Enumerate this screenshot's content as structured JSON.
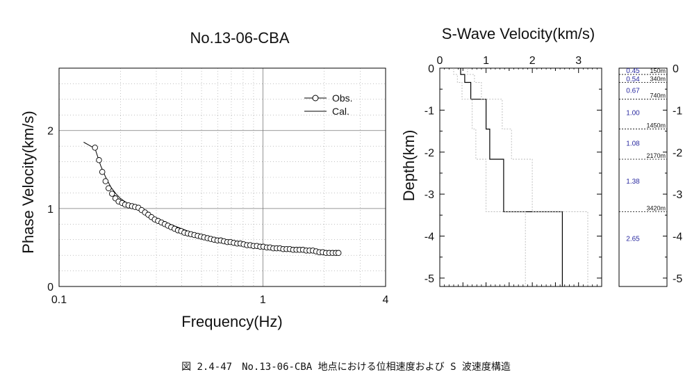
{
  "chart_data": [
    {
      "type": "line",
      "title": "No.13-06-CBA",
      "xlabel": "Frequency(Hz)",
      "ylabel": "Phase Velocity(km/s)",
      "xscale": "log",
      "xlim": [
        0.1,
        4
      ],
      "ylim": [
        0,
        2.8
      ],
      "x_ticks": [
        "0.1",
        "1",
        "4"
      ],
      "y_ticks": [
        "0",
        "1",
        "2"
      ],
      "grid": true,
      "legend": "top-right",
      "series": [
        {
          "name": "Obs.",
          "style": "markers",
          "x": [
            0.15,
            0.157,
            0.163,
            0.169,
            0.175,
            0.182,
            0.189,
            0.196,
            0.204,
            0.211,
            0.219,
            0.228,
            0.236,
            0.245,
            0.254,
            0.264,
            0.274,
            0.284,
            0.295,
            0.306,
            0.318,
            0.33,
            0.342,
            0.355,
            0.369,
            0.383,
            0.397,
            0.412,
            0.428,
            0.444,
            0.461,
            0.479,
            0.497,
            0.515,
            0.535,
            0.555,
            0.576,
            0.598,
            0.621,
            0.644,
            0.669,
            0.694,
            0.72,
            0.748,
            0.776,
            0.805,
            0.836,
            0.867,
            0.9,
            0.934,
            0.97,
            1.006,
            1.045,
            1.084,
            1.125,
            1.168,
            1.212,
            1.258,
            1.306,
            1.355,
            1.407,
            1.46,
            1.515,
            1.573,
            1.632,
            1.694,
            1.758,
            1.825,
            1.894,
            1.966,
            2.04,
            2.117,
            2.198,
            2.281,
            2.35
          ],
          "y": [
            1.78,
            1.62,
            1.47,
            1.35,
            1.26,
            1.19,
            1.13,
            1.09,
            1.07,
            1.05,
            1.04,
            1.03,
            1.02,
            1.01,
            0.98,
            0.95,
            0.92,
            0.89,
            0.86,
            0.84,
            0.82,
            0.8,
            0.78,
            0.76,
            0.74,
            0.72,
            0.71,
            0.69,
            0.68,
            0.67,
            0.66,
            0.65,
            0.64,
            0.63,
            0.62,
            0.61,
            0.6,
            0.59,
            0.59,
            0.58,
            0.57,
            0.57,
            0.56,
            0.55,
            0.55,
            0.54,
            0.53,
            0.53,
            0.52,
            0.52,
            0.51,
            0.51,
            0.5,
            0.5,
            0.49,
            0.49,
            0.49,
            0.48,
            0.48,
            0.48,
            0.47,
            0.47,
            0.47,
            0.47,
            0.46,
            0.46,
            0.46,
            0.45,
            0.44,
            0.44,
            0.43,
            0.43,
            0.43,
            0.43,
            0.43
          ]
        },
        {
          "name": "Cal.",
          "style": "line",
          "x": [
            0.132,
            0.15,
            0.16,
            0.17,
            0.18,
            0.19,
            0.2,
            0.21,
            0.23,
            0.25,
            0.27,
            0.3,
            0.35,
            0.4,
            0.45,
            0.5,
            0.6,
            0.7,
            0.8,
            0.9,
            1.0,
            1.2,
            1.5,
            1.8,
            2.0,
            2.2,
            2.4
          ],
          "y": [
            1.85,
            1.77,
            1.55,
            1.39,
            1.27,
            1.19,
            1.13,
            1.09,
            1.02,
            0.97,
            0.93,
            0.88,
            0.8,
            0.74,
            0.69,
            0.65,
            0.6,
            0.57,
            0.55,
            0.53,
            0.51,
            0.49,
            0.47,
            0.46,
            0.45,
            0.44,
            0.43
          ]
        }
      ]
    },
    {
      "type": "line",
      "title": "S-Wave Velocity(km/s)",
      "ylabel": "Depth(km)",
      "xlim": [
        0,
        3.5
      ],
      "ylim": [
        -5.2,
        0
      ],
      "x_ticks": [
        "0",
        "1",
        "2",
        "3"
      ],
      "y_ticks": [
        "0",
        "-1",
        "-2",
        "-3",
        "-4",
        "-5"
      ],
      "series": [
        {
          "name": "model",
          "style": "step",
          "velocity": [
            0.45,
            0.54,
            0.67,
            1.0,
            1.08,
            1.38,
            2.65
          ],
          "depth_top": [
            0,
            -0.15,
            -0.34,
            -0.74,
            -1.45,
            -2.17,
            -3.42
          ],
          "depth_bottom": [
            -0.15,
            -0.34,
            -0.74,
            -1.45,
            -2.17,
            -3.42,
            -5.2
          ]
        },
        {
          "name": "lower-bound",
          "style": "dotted",
          "velocity": [
            0.3,
            0.38,
            0.48,
            0.7,
            0.78,
            1.0,
            1.85
          ],
          "depth_top": [
            0,
            -0.15,
            -0.34,
            -0.74,
            -1.45,
            -2.17,
            -3.42
          ],
          "depth_bottom": [
            -0.15,
            -0.34,
            -0.74,
            -1.45,
            -2.17,
            -3.42,
            -5.2
          ]
        },
        {
          "name": "upper-bound",
          "style": "dotted",
          "velocity": [
            0.6,
            0.75,
            0.9,
            1.35,
            1.55,
            2.0,
            3.2
          ],
          "depth_top": [
            0,
            -0.15,
            -0.34,
            -0.74,
            -1.45,
            -2.17,
            -3.42
          ],
          "depth_bottom": [
            -0.15,
            -0.34,
            -0.74,
            -1.45,
            -2.17,
            -3.42,
            -5.2
          ]
        }
      ]
    },
    {
      "type": "table",
      "ylim": [
        -5.2,
        0
      ],
      "y_ticks": [
        "0",
        "-1",
        "-2",
        "-3",
        "-4",
        "-5"
      ],
      "boundaries": [
        {
          "depth": -0.15,
          "label": "150m"
        },
        {
          "depth": -0.34,
          "label": "340m"
        },
        {
          "depth": -0.74,
          "label": "740m"
        },
        {
          "depth": -1.45,
          "label": "1450m"
        },
        {
          "depth": -2.17,
          "label": "2170m"
        },
        {
          "depth": -3.42,
          "label": "3420m"
        }
      ],
      "layers": [
        {
          "depth_mid": -0.05,
          "velocity": "0.45"
        },
        {
          "depth_mid": -0.25,
          "velocity": "0.54"
        },
        {
          "depth_mid": -0.52,
          "velocity": "0.67"
        },
        {
          "depth_mid": -1.05,
          "velocity": "1.00"
        },
        {
          "depth_mid": -1.78,
          "velocity": "1.08"
        },
        {
          "depth_mid": -2.68,
          "velocity": "1.38"
        },
        {
          "depth_mid": -4.05,
          "velocity": "2.65"
        }
      ]
    }
  ],
  "caption": "図 2.4-47　No.13-06-CBA 地点における位相速度および S 波速度構造"
}
